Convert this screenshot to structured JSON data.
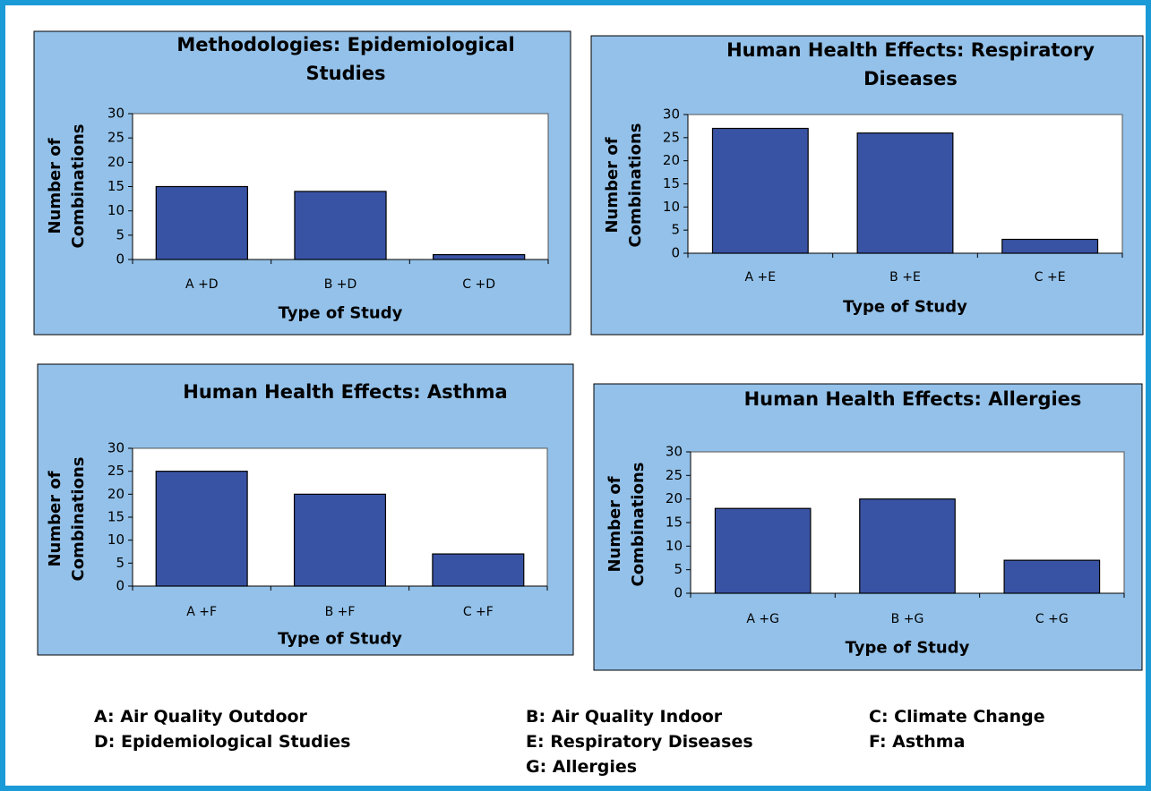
{
  "chart_data": [
    {
      "type": "bar",
      "title": "Methodologies: Epidemiological Studies",
      "categories": [
        "A +D",
        "B +D",
        "C +D"
      ],
      "values": [
        15,
        14,
        1
      ],
      "color": "#3953a4",
      "ylim": [
        0,
        30
      ],
      "yticks": [
        0,
        5,
        10,
        15,
        20,
        25,
        30
      ],
      "xlabel": "Type of Study",
      "ylabel": "Number of Combinations"
    },
    {
      "type": "bar",
      "title": "Human Health Effects: Respiratory Diseases",
      "categories": [
        "A +E",
        "B +E",
        "C +E"
      ],
      "values": [
        27,
        26,
        3
      ],
      "color": "#3953a4",
      "ylim": [
        0,
        30
      ],
      "yticks": [
        0,
        5,
        10,
        15,
        20,
        25,
        30
      ],
      "xlabel": "Type of Study",
      "ylabel": "Number of Combinations"
    },
    {
      "type": "bar",
      "title": "Human Health Effects: Asthma",
      "categories": [
        "A +F",
        "B +F",
        "C +F"
      ],
      "values": [
        25,
        20,
        7
      ],
      "color": "#3953a4",
      "ylim": [
        0,
        30
      ],
      "yticks": [
        0,
        5,
        10,
        15,
        20,
        25,
        30
      ],
      "xlabel": "Type of Study",
      "ylabel": "Number of Combinations"
    },
    {
      "type": "bar",
      "title": "Human Health Effects: Allergies",
      "categories": [
        "A +G",
        "B +G",
        "C +G"
      ],
      "values": [
        18,
        20,
        7
      ],
      "color": "#3953a4",
      "ylim": [
        0,
        30
      ],
      "yticks": [
        0,
        5,
        10,
        15,
        20,
        25,
        30
      ],
      "xlabel": "Type of Study",
      "ylabel": "Number of Combinations"
    }
  ],
  "legend": [
    "A: Air Quality Outdoor",
    "B: Air Quality Indoor",
    "C: Climate Change",
    "D: Epidemiological Studies",
    "E: Respiratory Diseases",
    "F: Asthma",
    "G: Allergies"
  ]
}
